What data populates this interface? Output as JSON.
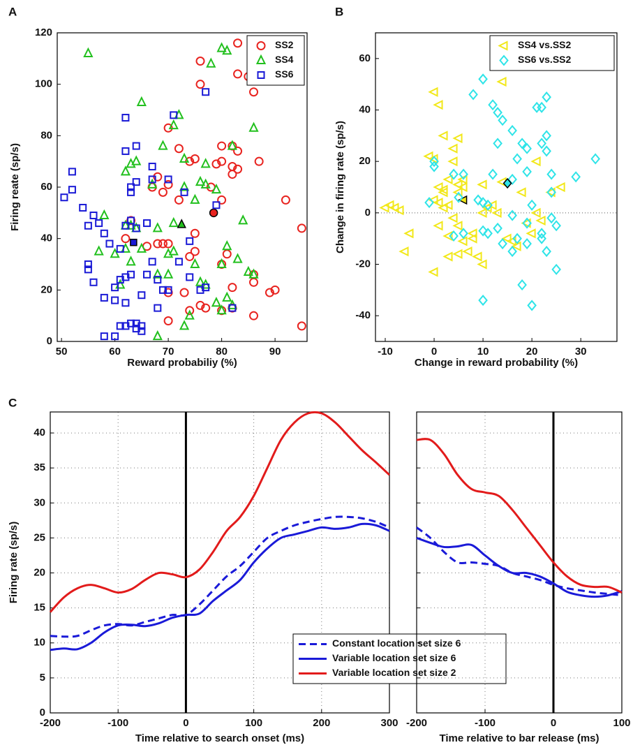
{
  "chart_data": [
    {
      "type": "scatter",
      "panel": "A",
      "xlabel": "Reward probabiliy (%)",
      "ylabel": "Firing reate (sp/s)",
      "xlim": [
        49.2,
        96
      ],
      "ylim": [
        0,
        120
      ],
      "xticks": [
        50,
        60,
        70,
        80,
        90
      ],
      "yticks": [
        0,
        20,
        40,
        60,
        80,
        100,
        120
      ],
      "legend": "upper-right",
      "series": [
        {
          "name": "SS2",
          "color": "#e8231f",
          "marker": "circle",
          "x": [
            83,
            76,
            76,
            83,
            85,
            86,
            70,
            72,
            74,
            75,
            80,
            82,
            83,
            79,
            80,
            83,
            82,
            87,
            82,
            68,
            67,
            70,
            69,
            72,
            78,
            80,
            92,
            95,
            75,
            63,
            68,
            69,
            70,
            66,
            62,
            75,
            74,
            81,
            80,
            82,
            86,
            86,
            90,
            89,
            74,
            76,
            77,
            73,
            70,
            70,
            80,
            82,
            86,
            95
          ],
          "y": [
            116,
            109,
            100,
            104,
            103,
            97,
            83,
            75,
            70,
            71,
            76,
            76,
            74,
            69,
            70,
            67,
            65,
            70,
            68,
            64,
            60,
            61,
            58,
            55,
            60,
            55,
            55,
            44,
            42,
            47,
            38,
            38,
            38,
            37,
            40,
            35,
            33,
            34,
            30,
            21,
            23,
            26,
            20,
            19,
            12,
            14,
            13,
            19,
            19,
            8,
            12,
            13,
            10,
            6
          ],
          "highlight": {
            "x": 78.5,
            "y": 50
          }
        },
        {
          "name": "SS4",
          "color": "#22c01e",
          "marker": "triangle",
          "x": [
            55,
            80,
            81,
            78,
            65,
            72,
            71,
            86,
            69,
            82,
            73,
            77,
            76,
            77,
            67,
            62,
            63,
            64,
            79,
            75,
            73,
            62,
            58,
            63,
            64,
            68,
            71,
            84,
            65,
            71,
            70,
            62,
            81,
            83,
            80,
            63,
            57,
            75,
            68,
            70,
            61,
            76,
            77,
            79,
            81,
            80,
            82,
            74,
            73,
            68,
            85,
            86,
            60
          ],
          "y": [
            112,
            114,
            113,
            108,
            93,
            88,
            84,
            83,
            76,
            76,
            71,
            69,
            62,
            61,
            61,
            66,
            69,
            70,
            59,
            55,
            60,
            45,
            49,
            45,
            44,
            44,
            46,
            47,
            36,
            35,
            34,
            36,
            37,
            32,
            30,
            31,
            35,
            30,
            26,
            26,
            22,
            23,
            22,
            15,
            17,
            12,
            14,
            10,
            6,
            2,
            27,
            26,
            34
          ],
          "highlight": {
            "x": 72.5,
            "y": 45.5
          }
        },
        {
          "name": "SS6",
          "color": "#1a1ad6",
          "marker": "square",
          "x": [
            52,
            52,
            50.5,
            54,
            55,
            57,
            58,
            59,
            56,
            61,
            62,
            63,
            64,
            66,
            60,
            61,
            62,
            63,
            67,
            66,
            68,
            70,
            55,
            55,
            56,
            58,
            60,
            62,
            65,
            64,
            63,
            61,
            62,
            58,
            60,
            64,
            65,
            62,
            71,
            77,
            62,
            64,
            64,
            63,
            63,
            67,
            67,
            70,
            73,
            79,
            72,
            74,
            76,
            77,
            82,
            68,
            69,
            65,
            74
          ],
          "y": [
            66,
            59,
            56,
            52,
            45,
            46,
            42,
            38,
            49,
            36,
            45,
            47,
            44,
            46,
            21,
            24,
            25,
            26,
            31,
            26,
            24,
            20,
            30,
            28,
            23,
            17,
            16,
            15,
            6,
            7,
            7,
            6,
            6,
            2,
            2,
            5,
            4,
            87,
            88,
            97,
            74,
            76,
            62,
            60,
            58,
            68,
            63,
            63,
            58,
            53,
            31,
            25,
            20,
            21,
            13,
            13,
            20,
            18,
            39
          ],
          "highlight": {
            "x": 63.5,
            "y": 38.5
          }
        }
      ]
    },
    {
      "type": "scatter",
      "panel": "B",
      "xlabel": "Change in reward probability (%)",
      "ylabel": "Change in firing rate (sp/s)",
      "xlim": [
        -12,
        37.4
      ],
      "ylim": [
        -50,
        70
      ],
      "xticks": [
        -10,
        0,
        10,
        20,
        30
      ],
      "yticks": [
        -40,
        -20,
        0,
        20,
        40,
        60
      ],
      "legend": "upper-right",
      "zero_line": true,
      "series": [
        {
          "name": "SS4 vs.SS2",
          "color": "#f2e81a",
          "marker": "tri-left",
          "x": [
            0,
            1,
            14,
            -10,
            -9,
            -8,
            -7,
            -6,
            -5,
            -1,
            0,
            0,
            1,
            2,
            2,
            1,
            3,
            2,
            2,
            4,
            5,
            4,
            3,
            5,
            6,
            5,
            6,
            4,
            5,
            3,
            3,
            5,
            6,
            7,
            8,
            8,
            9,
            10,
            10,
            10,
            11,
            12,
            13,
            15,
            16,
            17,
            18,
            19,
            20,
            21,
            21,
            22,
            24,
            26,
            14,
            0,
            1
          ],
          "y": [
            47,
            42,
            51,
            2,
            3,
            2,
            1,
            -15,
            -8,
            22,
            21,
            5,
            10,
            9,
            8,
            4,
            3,
            2,
            30,
            25,
            29,
            20,
            13,
            11,
            13,
            8,
            10,
            -2,
            -5,
            -9,
            -17,
            -16,
            -11,
            -15,
            -10,
            -8,
            -17,
            -20,
            11,
            0,
            2,
            3,
            0,
            -10,
            -11,
            -13,
            8,
            -4,
            -8,
            20,
            0,
            -3,
            8,
            10,
            12,
            -23,
            -5
          ],
          "highlight": {
            "x": 6,
            "y": 5
          }
        },
        {
          "name": "SS6 vs.SS2",
          "color": "#2fe4e8",
          "marker": "diamond",
          "x": [
            10,
            8,
            12,
            13,
            14,
            13,
            16,
            18,
            19,
            17,
            19,
            0,
            0,
            -1,
            4,
            5,
            6,
            4,
            6,
            9,
            10,
            10,
            11,
            10,
            12,
            13,
            16,
            16,
            18,
            20,
            19,
            20,
            21,
            22,
            22,
            23,
            23,
            23,
            24,
            24,
            23,
            24,
            25,
            25,
            29,
            33,
            22,
            19,
            16,
            11,
            14,
            17,
            22
          ],
          "y": [
            52,
            46,
            42,
            39,
            36,
            27,
            32,
            27,
            25,
            21,
            16,
            20,
            18,
            4,
            15,
            6,
            15,
            -9,
            -8,
            5,
            4,
            -7,
            -8,
            -34,
            15,
            -6,
            13,
            -1,
            -28,
            -36,
            -4,
            3,
            41,
            41,
            27,
            30,
            45,
            24,
            15,
            8,
            -15,
            -2,
            -5,
            -22,
            14,
            21,
            -8,
            -12,
            -15,
            3,
            -12,
            -10,
            -10
          ],
          "highlight": {
            "x": 15,
            "y": 11.5
          }
        }
      ]
    },
    {
      "type": "line",
      "panel": "C",
      "xlabel": "Time relative to search onset (ms)",
      "ylabel": "Firing rate (sp/s)",
      "xlim": [
        -200,
        300
      ],
      "ylim": [
        0,
        43
      ],
      "xticks": [
        -200,
        -100,
        0,
        100,
        200,
        300
      ],
      "yticks": [
        0,
        5,
        10,
        15,
        20,
        25,
        30,
        35,
        40
      ],
      "grid": true,
      "vline": 0,
      "legend": "lower-right",
      "x": [
        -200,
        -180,
        -160,
        -140,
        -120,
        -100,
        -80,
        -60,
        -40,
        -20,
        0,
        20,
        40,
        60,
        80,
        100,
        120,
        140,
        160,
        180,
        200,
        220,
        240,
        260,
        280,
        300
      ],
      "series": [
        {
          "name": "Constant location set size 6",
          "color": "#1a1ad8",
          "dashed": true,
          "values": [
            11,
            10.9,
            11,
            11.8,
            12.5,
            12.7,
            12.5,
            13,
            13.5,
            14,
            14,
            15.5,
            17.5,
            19.5,
            21,
            23,
            25,
            26,
            26.8,
            27.3,
            27.7,
            28,
            28,
            27.8,
            27.3,
            26.5
          ]
        },
        {
          "name": "Variable location set size 6",
          "color": "#1a1ad8",
          "dashed": false,
          "values": [
            9,
            9.2,
            9.1,
            10,
            11.5,
            12.5,
            12.6,
            12.4,
            12.8,
            13.6,
            14,
            14.2,
            16,
            17.5,
            19,
            21.5,
            23.5,
            25,
            25.5,
            26,
            26.5,
            26.3,
            26.5,
            27,
            26.8,
            26
          ]
        },
        {
          "name": "Variable location set size 2",
          "color": "#e21b1b",
          "dashed": false,
          "values": [
            14.4,
            16.5,
            17.8,
            18.3,
            17.8,
            17.2,
            17.7,
            19,
            20,
            19.8,
            19.4,
            20.5,
            23,
            26,
            28,
            31,
            35,
            39,
            41.5,
            42.8,
            42.8,
            41.5,
            39.5,
            37.5,
            35.8,
            34
          ]
        }
      ]
    },
    {
      "type": "line",
      "xlabel": "Time relative to bar release (ms)",
      "xlim": [
        -200,
        100
      ],
      "ylim": [
        0,
        43
      ],
      "xticks": [
        -200,
        -100,
        0,
        100
      ],
      "yticks": [
        0,
        5,
        10,
        15,
        20,
        25,
        30,
        35,
        40
      ],
      "ytick_labels": false,
      "grid": true,
      "vline": 0,
      "x": [
        -200,
        -180,
        -160,
        -140,
        -120,
        -100,
        -80,
        -60,
        -40,
        -20,
        0,
        20,
        40,
        60,
        80,
        100
      ],
      "series": [
        {
          "color": "#1a1ad8",
          "dashed": true,
          "values": [
            26.5,
            25,
            23,
            21.5,
            21.5,
            21.3,
            21,
            20,
            19.5,
            19,
            18.3,
            17.8,
            17.5,
            17.2,
            17,
            16.8
          ]
        },
        {
          "color": "#1a1ad8",
          "dashed": false,
          "values": [
            25,
            24.3,
            23.7,
            23.8,
            24,
            22.5,
            21,
            20,
            20,
            19.5,
            18.5,
            17.3,
            16.8,
            16.6,
            16.8,
            17.4
          ]
        },
        {
          "color": "#e21b1b",
          "dashed": false,
          "values": [
            39,
            39,
            37,
            34,
            32,
            31.5,
            31,
            29,
            26.5,
            24,
            21.5,
            19.5,
            18.3,
            18,
            18,
            17.2
          ]
        }
      ]
    }
  ]
}
